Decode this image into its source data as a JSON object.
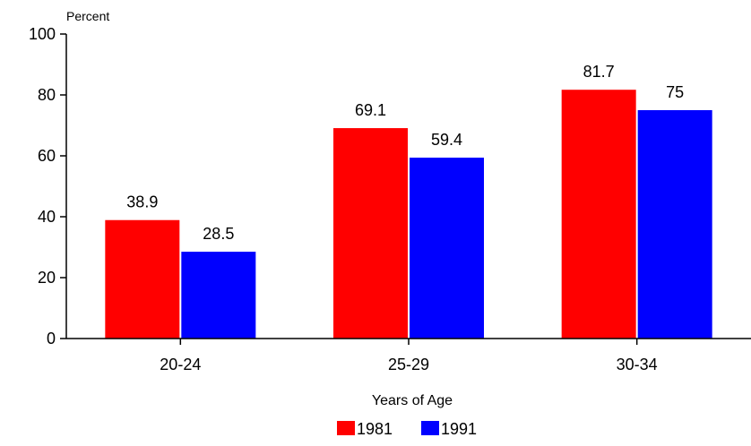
{
  "chart_data": {
    "type": "bar",
    "title": "",
    "xlabel": "Years of Age",
    "ylabel": "Percent",
    "ylim": [
      0,
      100
    ],
    "yticks": [
      0,
      20,
      40,
      60,
      80,
      100
    ],
    "grid": false,
    "legend_position": "bottom-center",
    "categories": [
      "20-24",
      "25-29",
      "30-34"
    ],
    "series": [
      {
        "name": "1981",
        "color": "#ff0000",
        "values": [
          38.9,
          69.1,
          81.7
        ],
        "labels": [
          "38.9",
          "69.1",
          "81.7"
        ]
      },
      {
        "name": "1991",
        "color": "#0000ff",
        "values": [
          28.5,
          59.4,
          75
        ],
        "labels": [
          "28.5",
          "59.4",
          "75"
        ]
      }
    ]
  }
}
